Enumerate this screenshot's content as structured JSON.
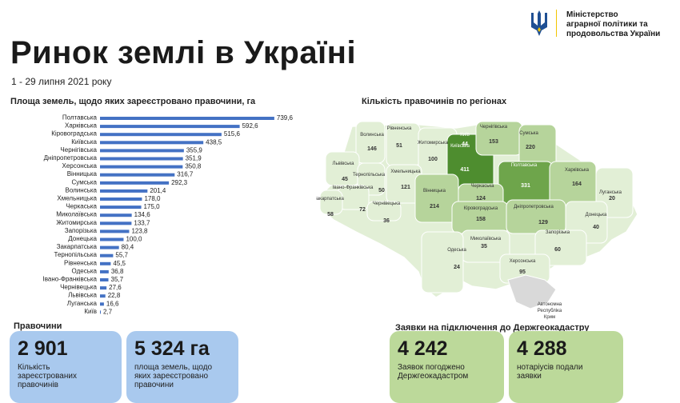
{
  "header": {
    "ministry_line1": "Міністерство",
    "ministry_line2": "аграрної політики та",
    "ministry_line3": "продовольства України",
    "title": "Ринок землі в Україні",
    "period": "1 - 29 липня 2021 року"
  },
  "colors": {
    "bar": "#4472c4",
    "blue_card": "#a9c9ee",
    "green_card": "#bcd99a",
    "map_light": "#e2efd6",
    "map_mid": "#b6d49b",
    "map_dark": "#6ea54b",
    "map_darkest": "#4e8d2f",
    "map_grey": "#d9d9d9"
  },
  "chart_data": {
    "type": "bar",
    "orientation": "horizontal",
    "title": "Площа земель, щодо яких зареєстровано правочини, га",
    "categories": [
      "Полтавська",
      "Харківська",
      "Кіровоградська",
      "Київська",
      "Чернігівська",
      "Дніпропетровська",
      "Херсонська",
      "Вінницька",
      "Сумська",
      "Волинська",
      "Хмельницька",
      "Черкаська",
      "Миколаївська",
      "Житомирська",
      "Запорізька",
      "Донецька",
      "Закарпатська",
      "Тернопільська",
      "Рівненська",
      "Одеська",
      "Івано-Франківська",
      "Чернівецька",
      "Львівська",
      "Луганська",
      "Київ"
    ],
    "values": [
      739.6,
      592.6,
      515.6,
      438.5,
      355.9,
      351.9,
      350.8,
      316.7,
      292.3,
      201.4,
      178.0,
      175.0,
      134.6,
      133.7,
      123.8,
      100.0,
      80.4,
      55.7,
      45.5,
      36.8,
      35.7,
      27.6,
      22.8,
      16.6,
      2.7
    ],
    "value_labels": [
      "739,6",
      "592,6",
      "515,6",
      "438,5",
      "355,9",
      "351,9",
      "350,8",
      "316,7",
      "292,3",
      "201,4",
      "178,0",
      "175,0",
      "134,6",
      "133,7",
      "123,8",
      "100,0",
      "80,4",
      "55,7",
      "45,5",
      "36,8",
      "35,7",
      "27,6",
      "22,8",
      "16,6",
      "2,7"
    ],
    "xlim": [
      0,
      740
    ]
  },
  "map": {
    "title": "Кількість правочинів по регіонах",
    "regions": [
      {
        "name": "Волинська",
        "value": "146",
        "color": "map_light"
      },
      {
        "name": "Рівненська",
        "value": "51",
        "color": "map_light"
      },
      {
        "name": "Житомирська",
        "value": "100",
        "color": "map_light"
      },
      {
        "name": "Київ",
        "value": "44",
        "color": "map_darkest"
      },
      {
        "name": "Київська",
        "value": "411",
        "color": "map_darkest"
      },
      {
        "name": "Чернігівська",
        "value": "153",
        "color": "map_mid"
      },
      {
        "name": "Сумська",
        "value": "220",
        "color": "map_mid"
      },
      {
        "name": "Полтавська",
        "value": "331",
        "color": "map_dark"
      },
      {
        "name": "Харківська",
        "value": "164",
        "color": "map_mid"
      },
      {
        "name": "Луганська",
        "value": "20",
        "color": "map_light"
      },
      {
        "name": "Львівська",
        "value": "45",
        "color": "map_light"
      },
      {
        "name": "Тернопільська",
        "value": "50",
        "color": "map_light"
      },
      {
        "name": "Хмельницька",
        "value": "121",
        "color": "map_light"
      },
      {
        "name": "Івано-Франківська",
        "value": "72",
        "color": "map_light"
      },
      {
        "name": "Закарпатська",
        "value": "58",
        "color": "map_light"
      },
      {
        "name": "Чернівецька",
        "value": "36",
        "color": "map_light"
      },
      {
        "name": "Вінницька",
        "value": "214",
        "color": "map_mid"
      },
      {
        "name": "Черкаська",
        "value": "124",
        "color": "map_mid"
      },
      {
        "name": "Кіровоградська",
        "value": "158",
        "color": "map_mid"
      },
      {
        "name": "Дніпропетровська",
        "value": "129",
        "color": "map_mid"
      },
      {
        "name": "Донецька",
        "value": "40",
        "color": "map_light"
      },
      {
        "name": "Запорізька",
        "value": "60",
        "color": "map_light"
      },
      {
        "name": "Миколаївська",
        "value": "35",
        "color": "map_light"
      },
      {
        "name": "Херсонська",
        "value": "95",
        "color": "map_light"
      },
      {
        "name": "Одеська",
        "value": "24",
        "color": "map_light"
      }
    ],
    "crimea_label_1": "Автономна",
    "crimea_label_2": "Республіка",
    "crimea_label_3": "Крим"
  },
  "deals": {
    "heading": "Правочини",
    "count_value": "2 901",
    "count_desc_1": "Кількість",
    "count_desc_2": "зареєстрованих",
    "count_desc_3": "правочинів",
    "area_value": "5 324 га",
    "area_desc_1": "площа земель, щодо",
    "area_desc_2": "яких зареєстровано",
    "area_desc_3": "правочини"
  },
  "requests": {
    "heading": "Заявки на підключення до Держгеокадастру",
    "approved_value": "4 242",
    "approved_desc_1": "Заявок погоджено",
    "approved_desc_2": "Держгеокадастром",
    "notaries_value": "4 288",
    "notaries_desc_1": "нотаріусів подали",
    "notaries_desc_2": "заявки"
  }
}
